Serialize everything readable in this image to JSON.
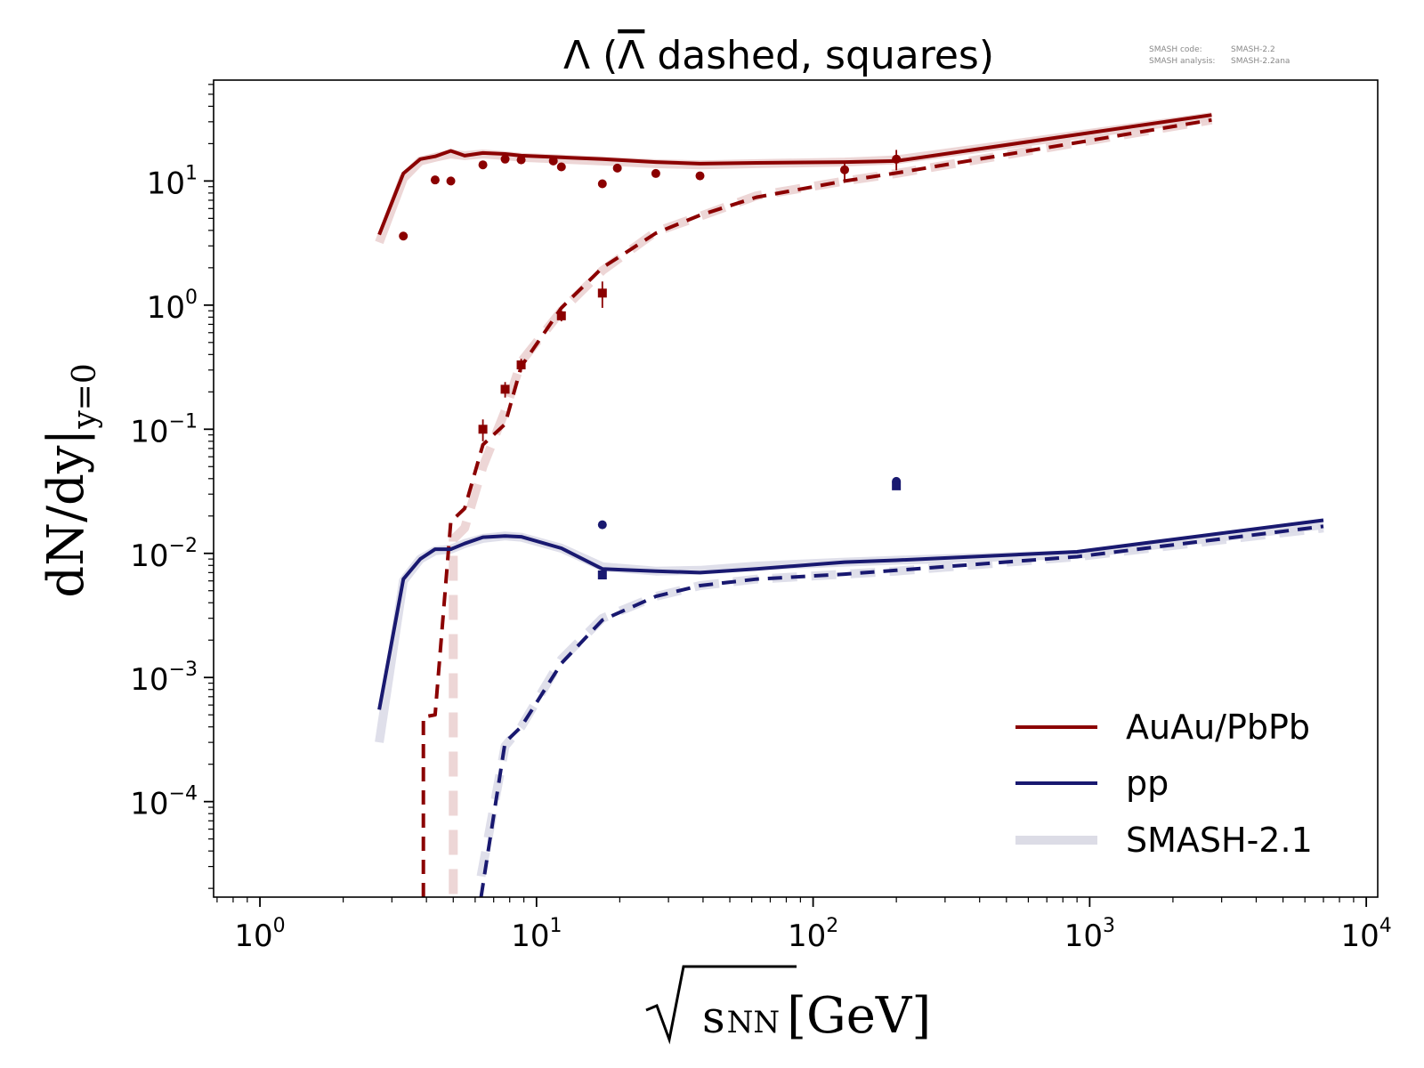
{
  "meta": {
    "smash_code_label": "SMASH code:",
    "smash_code_value": "SMASH-2.2",
    "smash_analysis_label": "SMASH analysis:",
    "smash_analysis_value": "SMASH-2.2ana"
  },
  "colors": {
    "auau": "#8b0000",
    "pp": "#191970",
    "smash21": "#dcdce6",
    "auau_ref": "#ebd2d2",
    "pp_ref": "#dcdce8"
  },
  "chart_data": {
    "type": "line",
    "title_main": "Λ (",
    "title_bar_symbol": "Λ",
    "title_rest": " dashed, squares)",
    "xlabel_root": "√",
    "xlabel_var": "s",
    "xlabel_sub": "NN",
    "xlabel_unit": "[GeV]",
    "ylabel_main": "dN/dy|",
    "ylabel_sub": "y=0",
    "xscale": "log",
    "yscale": "log",
    "xlim": [
      0.68,
      11000
    ],
    "ylim": [
      1.7e-05,
      65
    ],
    "x_ticks": [
      {
        "value": 1,
        "base": "10",
        "exp": "0"
      },
      {
        "value": 10,
        "base": "10",
        "exp": "1"
      },
      {
        "value": 100,
        "base": "10",
        "exp": "2"
      },
      {
        "value": 1000,
        "base": "10",
        "exp": "3"
      },
      {
        "value": 10000,
        "base": "10",
        "exp": "4"
      }
    ],
    "y_ticks": [
      {
        "value": 0.0001,
        "base": "10",
        "exp": "−4"
      },
      {
        "value": 0.001,
        "base": "10",
        "exp": "−3"
      },
      {
        "value": 0.01,
        "base": "10",
        "exp": "−2"
      },
      {
        "value": 0.1,
        "base": "10",
        "exp": "−1"
      },
      {
        "value": 1,
        "base": "10",
        "exp": "0"
      },
      {
        "value": 10,
        "base": "10",
        "exp": "1"
      }
    ],
    "legend": {
      "placement": "lower-right",
      "entries": [
        {
          "label": "AuAu/PbPb",
          "color": "#8b0000",
          "style": "solid"
        },
        {
          "label": "pp",
          "color": "#191970",
          "style": "solid"
        },
        {
          "label": "SMASH-2.1",
          "color": "#dcdce6",
          "style": "thick"
        }
      ]
    },
    "series": [
      {
        "id": "smash21-auau-lambda",
        "color": "#ebd2d2",
        "width": 10,
        "dash": "",
        "opacity": 0.9,
        "x": [
          2.7,
          3.3,
          3.8,
          4.3,
          4.9,
          5.5,
          6.4,
          7.7,
          8.8,
          12.3,
          17.3,
          27,
          39,
          62.4,
          130,
          200,
          2760
        ],
        "y": [
          3.2,
          10.5,
          14.5,
          15.5,
          16.5,
          16,
          16.5,
          16,
          15.5,
          15,
          14.5,
          13.8,
          13.5,
          13.8,
          14.2,
          14.8,
          33
        ]
      },
      {
        "id": "smash21-auau-antilambda",
        "color": "#ebd2d2",
        "width": 10,
        "dash": "28,16",
        "opacity": 0.9,
        "x": [
          5.0,
          5.0,
          5.5,
          6.4,
          7.7,
          8.8,
          12.3,
          17.3,
          27,
          39,
          62.4,
          130,
          200,
          2760
        ],
        "y": [
          1.8e-05,
          0.013,
          0.016,
          0.05,
          0.14,
          0.35,
          0.9,
          1.9,
          3.9,
          5.2,
          7.6,
          10,
          11.5,
          31
        ]
      },
      {
        "id": "smash21-pp-lambda",
        "color": "#dcdce8",
        "width": 10,
        "dash": "",
        "opacity": 0.9,
        "x": [
          2.7,
          3.3,
          3.8,
          4.3,
          4.9,
          5.5,
          6.4,
          7.7,
          8.8,
          12.3,
          17.3,
          27,
          39,
          62.4,
          130,
          200,
          900,
          7000
        ],
        "y": [
          0.0003,
          0.006,
          0.009,
          0.0105,
          0.0108,
          0.012,
          0.0132,
          0.0138,
          0.0135,
          0.011,
          0.0078,
          0.0072,
          0.0073,
          0.0079,
          0.0085,
          0.0088,
          0.0098,
          0.017
        ]
      },
      {
        "id": "smash21-pp-antilambda",
        "color": "#dcdce8",
        "width": 10,
        "dash": "28,16",
        "opacity": 0.9,
        "x": [
          6.3,
          7.7,
          8.8,
          12.3,
          17.3,
          27,
          39,
          62.4,
          130,
          200,
          900,
          7000
        ],
        "y": [
          2.5e-05,
          0.00028,
          0.0004,
          0.0014,
          0.003,
          0.0045,
          0.0055,
          0.0062,
          0.0068,
          0.0072,
          0.0094,
          0.016
        ]
      },
      {
        "id": "auau-lambda-line",
        "color": "#8b0000",
        "width": 4,
        "dash": "",
        "opacity": 1,
        "x": [
          2.7,
          3.3,
          3.8,
          4.3,
          4.9,
          5.5,
          6.4,
          7.7,
          8.8,
          12.3,
          17.3,
          27,
          39,
          62.4,
          130,
          200,
          2760
        ],
        "y": [
          3.7,
          11.5,
          15,
          15.8,
          17.5,
          16,
          16.8,
          16.5,
          16,
          15.5,
          15,
          14.2,
          13.8,
          14,
          14.2,
          14.5,
          34
        ]
      },
      {
        "id": "auau-antilambda-line",
        "color": "#8b0000",
        "width": 4,
        "dash": "16,10",
        "opacity": 1,
        "x": [
          3.9,
          3.9,
          4.3,
          4.9,
          5.5,
          6.4,
          7.7,
          8.8,
          12.3,
          17.3,
          27,
          39,
          62.4,
          130,
          200,
          2760
        ],
        "y": [
          1.7e-05,
          0.00048,
          0.0005,
          0.018,
          0.023,
          0.075,
          0.11,
          0.32,
          0.95,
          2.0,
          3.8,
          5.3,
          7.4,
          10,
          11.6,
          31
        ]
      },
      {
        "id": "pp-lambda-line",
        "color": "#191970",
        "width": 4,
        "dash": "",
        "opacity": 1,
        "x": [
          2.7,
          3.3,
          3.8,
          4.3,
          4.9,
          5.5,
          6.4,
          7.7,
          8.8,
          12.3,
          17.3,
          27,
          39,
          62.4,
          130,
          200,
          900,
          7000
        ],
        "y": [
          0.00055,
          0.0062,
          0.009,
          0.0108,
          0.0108,
          0.012,
          0.0135,
          0.0138,
          0.0136,
          0.011,
          0.0075,
          0.0072,
          0.007,
          0.0075,
          0.0085,
          0.0088,
          0.0103,
          0.0185
        ]
      },
      {
        "id": "pp-antilambda-line",
        "color": "#191970",
        "width": 4,
        "dash": "16,10",
        "opacity": 1,
        "x": [
          6.3,
          7.7,
          8.8,
          12.3,
          17.3,
          27,
          39,
          62.4,
          130,
          200,
          900,
          7000
        ],
        "y": [
          1.7e-05,
          0.0003,
          0.0004,
          0.0013,
          0.0029,
          0.0045,
          0.0055,
          0.0062,
          0.0068,
          0.0073,
          0.0094,
          0.0165
        ]
      }
    ],
    "points": [
      {
        "id": "auau-lambda-data",
        "marker": "circle",
        "color": "#8b0000",
        "x": [
          3.3,
          4.3,
          4.9,
          6.4,
          7.7,
          8.8,
          11.5,
          12.3,
          17.3,
          19.6,
          27,
          39,
          130,
          200
        ],
        "y": [
          3.6,
          10.2,
          10,
          13.5,
          15,
          14.8,
          14.5,
          13,
          9.5,
          12.7,
          11.5,
          11,
          12.3,
          15
        ],
        "err": [
          0,
          0,
          0,
          0,
          0,
          0,
          0,
          0,
          0,
          0,
          0,
          0,
          2.2,
          2.8
        ]
      },
      {
        "id": "auau-antilambda-data",
        "marker": "square",
        "color": "#8b0000",
        "x": [
          6.4,
          7.7,
          8.8,
          12.3,
          17.3
        ],
        "y": [
          0.1,
          0.21,
          0.33,
          0.82,
          1.25
        ],
        "err": [
          0.02,
          0.03,
          0.04,
          0.08,
          0.3
        ]
      },
      {
        "id": "pp-lambda-data",
        "marker": "circle",
        "color": "#191970",
        "x": [
          17.3,
          200
        ],
        "y": [
          0.017,
          0.038
        ],
        "err": [
          0,
          0
        ]
      },
      {
        "id": "pp-antilambda-data",
        "marker": "square",
        "color": "#191970",
        "x": [
          17.3,
          200
        ],
        "y": [
          0.0067,
          0.035
        ],
        "err": [
          0,
          0
        ]
      }
    ]
  }
}
